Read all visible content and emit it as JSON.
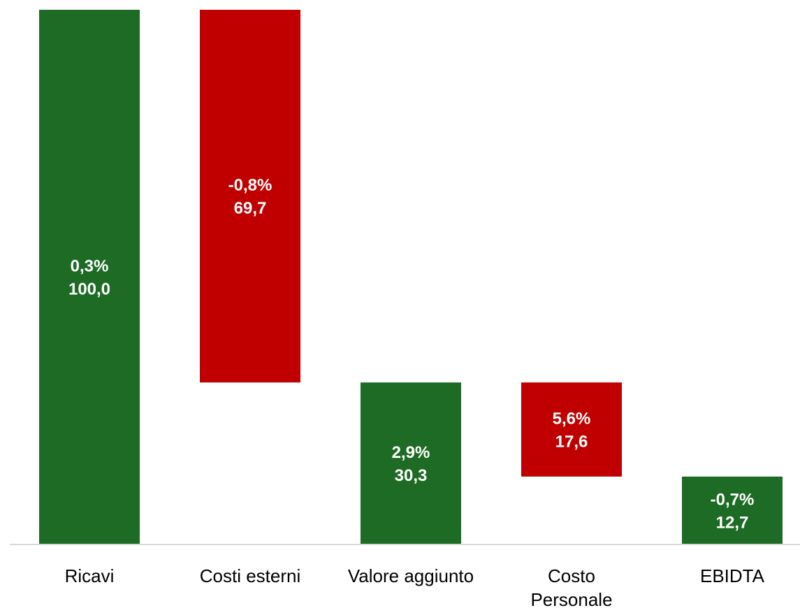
{
  "chart_data": {
    "type": "bar",
    "subtype": "waterfall",
    "categories": [
      [
        "Ricavi"
      ],
      [
        "Costi esterni"
      ],
      [
        "Valore aggiunto"
      ],
      [
        "Costo",
        "Personale"
      ],
      [
        "EBIDTA"
      ]
    ],
    "values": [
      100.0,
      69.7,
      30.3,
      17.6,
      12.7
    ],
    "value_labels": [
      "100,0",
      "69,7",
      "30,3",
      "17,6",
      "12,7"
    ],
    "change_labels": [
      "0,3%",
      "-0,8%",
      "2,9%",
      "5,6%",
      "-0,7%"
    ],
    "kinds": [
      "total",
      "decrease",
      "total",
      "decrease",
      "total"
    ],
    "ylim": [
      0,
      100
    ],
    "grid": false,
    "legend": "none",
    "colors": {
      "total": "#1d6b24",
      "decrease": "#c00000",
      "axis": "#d9d9d9",
      "label": "#ffffff",
      "category": "#000000"
    }
  }
}
